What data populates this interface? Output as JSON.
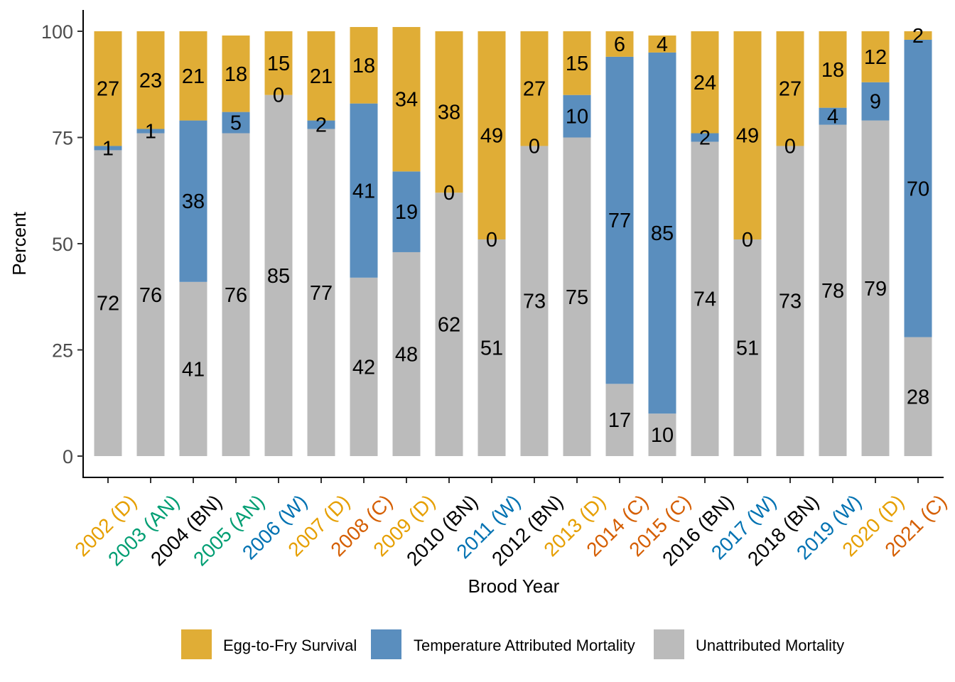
{
  "chart_data": {
    "type": "bar",
    "stacked": true,
    "xlabel": "Brood Year",
    "ylabel": "Percent",
    "ylim": [
      0,
      100
    ],
    "yticks": [
      0,
      25,
      50,
      75,
      100
    ],
    "grid": false,
    "legend_position": "bottom",
    "categories": [
      "2002 (D)",
      "2003 (AN)",
      "2004 (BN)",
      "2005 (AN)",
      "2006 (W)",
      "2007 (D)",
      "2008 (C)",
      "2009 (D)",
      "2010 (BN)",
      "2011 (W)",
      "2012 (BN)",
      "2013 (D)",
      "2014 (C)",
      "2015 (C)",
      "2016 (BN)",
      "2017 (W)",
      "2018 (BN)",
      "2019 (W)",
      "2020 (D)",
      "2021 (C)"
    ],
    "category_types": [
      "D",
      "AN",
      "BN",
      "AN",
      "W",
      "D",
      "C",
      "D",
      "BN",
      "W",
      "BN",
      "D",
      "C",
      "C",
      "BN",
      "W",
      "BN",
      "W",
      "D",
      "C"
    ],
    "category_type_colors": {
      "D": "#E69F00",
      "AN": "#009E73",
      "BN": "#000000",
      "W": "#0072B2",
      "C": "#D55E00"
    },
    "series": [
      {
        "name": "Unattributed Mortality",
        "color": "#BBBBBB",
        "values": [
          72,
          76,
          41,
          76,
          85,
          77,
          42,
          48,
          62,
          51,
          73,
          75,
          17,
          10,
          74,
          51,
          73,
          78,
          79,
          28
        ]
      },
      {
        "name": "Temperature Attributed Mortality",
        "color": "#5A8EBE",
        "values": [
          1,
          1,
          38,
          5,
          0,
          2,
          41,
          19,
          0,
          0,
          0,
          10,
          77,
          85,
          2,
          0,
          0,
          4,
          9,
          70
        ]
      },
      {
        "name": "Egg-to-Fry Survival",
        "color": "#E0AD36",
        "values": [
          27,
          23,
          21,
          18,
          15,
          21,
          18,
          34,
          38,
          49,
          27,
          15,
          6,
          4,
          24,
          49,
          27,
          18,
          12,
          2
        ]
      }
    ],
    "legend_order": [
      "Egg-to-Fry Survival",
      "Temperature Attributed Mortality",
      "Unattributed Mortality"
    ]
  }
}
